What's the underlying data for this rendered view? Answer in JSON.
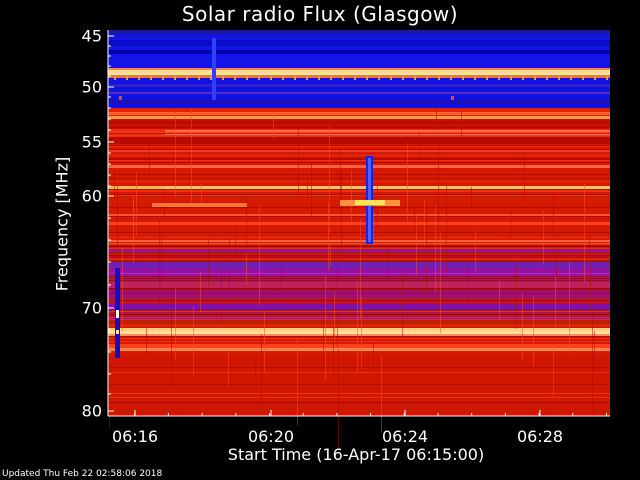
{
  "chart_data": {
    "type": "heatmap",
    "title": "Solar radio Flux (Glasgow)",
    "xlabel": "Start Time (16-Apr-17 06:15:00)",
    "ylabel": "Frequency [MHz]",
    "y_ticks": [
      "45",
      "50",
      "55",
      "60",
      "70",
      "80"
    ],
    "x_ticks": [
      "06:16",
      "06:20",
      "06:24",
      "06:28"
    ],
    "y_axis_scale": "log",
    "ylim": [
      45,
      80
    ],
    "footer": "Updated Thu Feb 22 02:58:06 2018",
    "colormap": [
      "#000000",
      "#0000a0",
      "#2020ff",
      "#c00000",
      "#ff2000",
      "#ff8040",
      "#ffff80",
      "#ffffff"
    ]
  }
}
